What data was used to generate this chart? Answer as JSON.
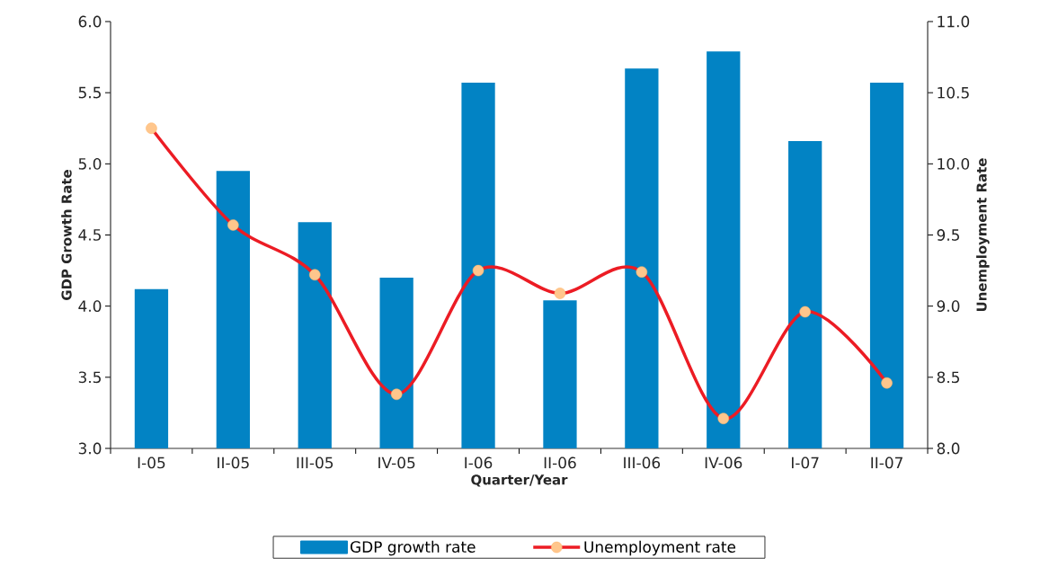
{
  "chart_data": {
    "type": "bar",
    "xlabel": "Quarter/Year",
    "ylabel": "GDP Growth Rate",
    "y2label": "Unemployment Rate",
    "categories": [
      "I-05",
      "II-05",
      "III-05",
      "IV-05",
      "I-06",
      "II-06",
      "III-06",
      "IV-06",
      "I-07",
      "II-07"
    ],
    "series": [
      {
        "name": "GDP growth rate",
        "color": "#0283c4",
        "values": [
          4.12,
          4.95,
          4.59,
          4.2,
          5.57,
          4.04,
          5.67,
          5.79,
          5.16,
          5.57
        ]
      },
      {
        "name": "Unemployment rate",
        "type": "line",
        "axis": "y2",
        "color": "#ec1c24",
        "marker": "circle",
        "values": [
          10.25,
          9.57,
          9.22,
          8.38,
          9.25,
          9.09,
          9.24,
          8.21,
          8.96,
          8.46
        ]
      }
    ],
    "ylim": [
      3.0,
      6.0
    ],
    "yticks": [
      {
        "value": 3.0,
        "label": "3.0"
      },
      {
        "value": 3.5,
        "label": "3.5"
      },
      {
        "value": 4.0,
        "label": "4.0"
      },
      {
        "value": 4.5,
        "label": "4.5"
      },
      {
        "value": 5.0,
        "label": "5.0"
      },
      {
        "value": 5.5,
        "label": "5.5"
      },
      {
        "value": 6.0,
        "label": "6.0"
      }
    ],
    "y2lim": [
      8.0,
      11.0
    ],
    "y2ticks": [
      {
        "value": 8.0,
        "label": "8.0"
      },
      {
        "value": 8.5,
        "label": "8.5"
      },
      {
        "value": 9.0,
        "label": "9.0"
      },
      {
        "value": 9.5,
        "label": "9.5"
      },
      {
        "value": 10.0,
        "label": "10.0"
      },
      {
        "value": 10.5,
        "label": "10.5"
      },
      {
        "value": 11.0,
        "label": "11.0"
      }
    ],
    "legend": "bottom",
    "grid": false
  }
}
